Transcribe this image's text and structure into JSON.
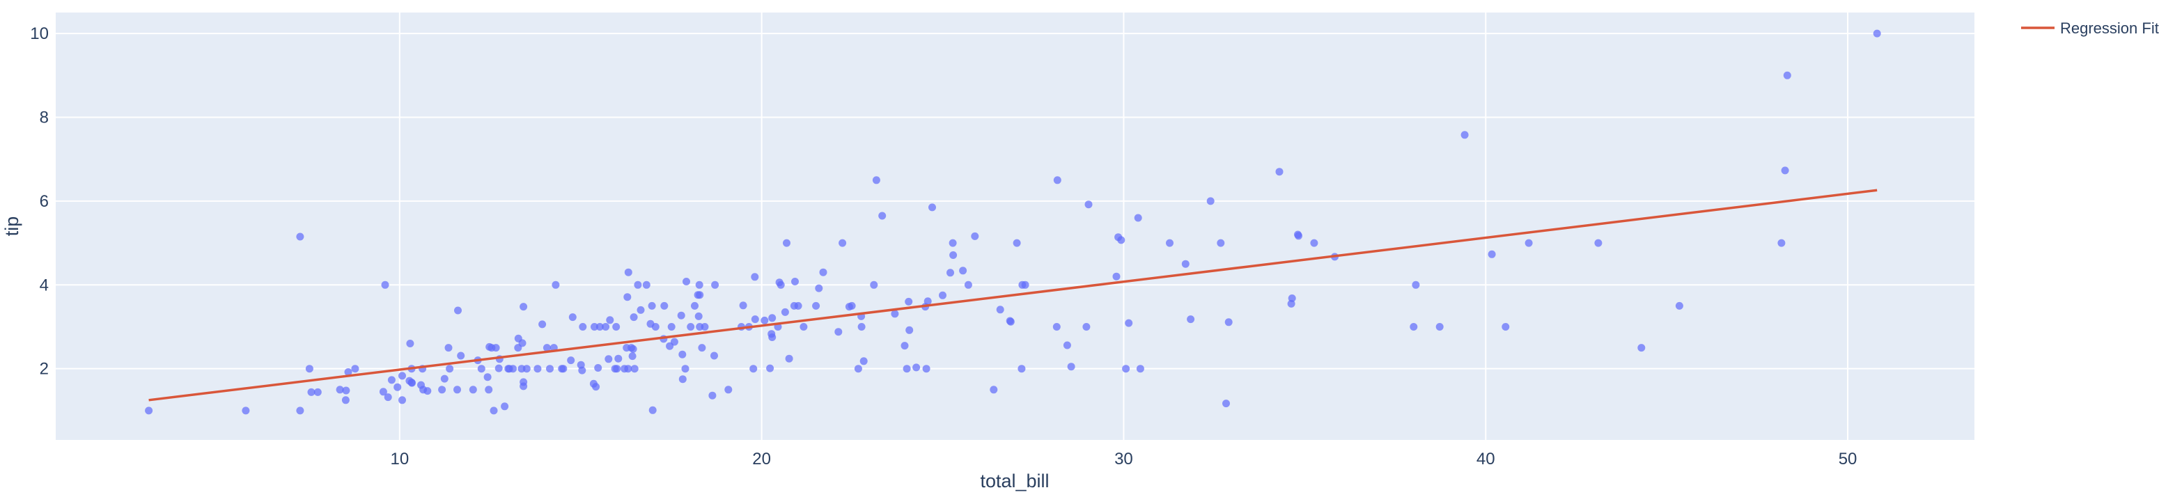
{
  "chart_data": {
    "type": "scatter",
    "title": "",
    "xlabel": "total_bill",
    "ylabel": "tip",
    "xlim": [
      0.5,
      53.5
    ],
    "ylim": [
      0.3,
      10.5
    ],
    "xticks": [
      10,
      20,
      30,
      40,
      50
    ],
    "yticks": [
      2,
      4,
      6,
      8,
      10
    ],
    "grid": true,
    "legend_position": "top-right",
    "colors": {
      "background": "#e5ecf6",
      "grid": "#ffffff",
      "points": "#636efa",
      "fit": "#d9563a",
      "text": "#2a3f5f"
    },
    "series": [
      {
        "type": "scatter",
        "points": [
          [
            3.07,
            1.0
          ],
          [
            5.75,
            1.0
          ],
          [
            7.25,
            5.15
          ],
          [
            7.25,
            1.0
          ],
          [
            7.51,
            2.0
          ],
          [
            7.56,
            1.44
          ],
          [
            7.74,
            1.44
          ],
          [
            8.35,
            1.5
          ],
          [
            8.51,
            1.25
          ],
          [
            8.52,
            1.48
          ],
          [
            8.58,
            1.92
          ],
          [
            8.77,
            2.0
          ],
          [
            9.55,
            1.45
          ],
          [
            9.6,
            4.0
          ],
          [
            9.68,
            1.32
          ],
          [
            9.78,
            1.73
          ],
          [
            9.94,
            1.56
          ],
          [
            10.07,
            1.25
          ],
          [
            10.07,
            1.83
          ],
          [
            10.27,
            1.71
          ],
          [
            10.29,
            2.6
          ],
          [
            10.33,
            1.67
          ],
          [
            10.33,
            2.0
          ],
          [
            10.34,
            1.66
          ],
          [
            10.59,
            1.61
          ],
          [
            10.63,
            2.0
          ],
          [
            10.65,
            1.5
          ],
          [
            10.77,
            1.47
          ],
          [
            11.17,
            1.5
          ],
          [
            11.24,
            1.76
          ],
          [
            11.35,
            2.5
          ],
          [
            11.38,
            2.0
          ],
          [
            11.59,
            1.5
          ],
          [
            11.61,
            3.39
          ],
          [
            11.69,
            2.31
          ],
          [
            12.03,
            1.5
          ],
          [
            12.16,
            2.2
          ],
          [
            12.26,
            2.0
          ],
          [
            12.43,
            1.8
          ],
          [
            12.46,
            1.5
          ],
          [
            12.48,
            2.52
          ],
          [
            12.54,
            2.5
          ],
          [
            12.6,
            1.0
          ],
          [
            12.66,
            2.5
          ],
          [
            12.74,
            2.01
          ],
          [
            12.76,
            2.23
          ],
          [
            12.9,
            1.1
          ],
          [
            13.0,
            2.0
          ],
          [
            13.03,
            2.0
          ],
          [
            13.13,
            2.0
          ],
          [
            13.27,
            2.5
          ],
          [
            13.28,
            2.72
          ],
          [
            13.37,
            2.0
          ],
          [
            13.39,
            2.61
          ],
          [
            13.42,
            1.58
          ],
          [
            13.42,
            3.48
          ],
          [
            13.42,
            1.68
          ],
          [
            13.51,
            2.0
          ],
          [
            13.81,
            2.0
          ],
          [
            13.94,
            3.06
          ],
          [
            14.07,
            2.5
          ],
          [
            14.15,
            2.0
          ],
          [
            14.26,
            2.5
          ],
          [
            14.31,
            4.0
          ],
          [
            14.48,
            2.0
          ],
          [
            14.52,
            2.0
          ],
          [
            14.73,
            2.2
          ],
          [
            14.78,
            3.23
          ],
          [
            15.01,
            2.09
          ],
          [
            15.04,
            1.96
          ],
          [
            15.06,
            3.0
          ],
          [
            15.36,
            1.64
          ],
          [
            15.38,
            3.0
          ],
          [
            15.42,
            1.57
          ],
          [
            15.48,
            2.02
          ],
          [
            15.53,
            3.0
          ],
          [
            15.69,
            3.0
          ],
          [
            15.77,
            2.23
          ],
          [
            15.81,
            3.16
          ],
          [
            15.95,
            2.0
          ],
          [
            15.98,
            3.0
          ],
          [
            16.0,
            2.0
          ],
          [
            16.04,
            2.24
          ],
          [
            16.21,
            2.0
          ],
          [
            16.27,
            2.5
          ],
          [
            16.29,
            3.71
          ],
          [
            16.31,
            2.0
          ],
          [
            16.32,
            4.3
          ],
          [
            16.4,
            2.5
          ],
          [
            16.43,
            2.3
          ],
          [
            16.45,
            2.47
          ],
          [
            16.47,
            3.23
          ],
          [
            16.49,
            2.0
          ],
          [
            16.58,
            4.0
          ],
          [
            16.66,
            3.4
          ],
          [
            16.82,
            4.0
          ],
          [
            16.93,
            3.07
          ],
          [
            16.97,
            3.5
          ],
          [
            16.99,
            1.01
          ],
          [
            17.07,
            3.0
          ],
          [
            17.29,
            2.71
          ],
          [
            17.31,
            3.5
          ],
          [
            17.46,
            2.54
          ],
          [
            17.51,
            3.0
          ],
          [
            17.59,
            2.64
          ],
          [
            17.78,
            3.27
          ],
          [
            17.81,
            2.34
          ],
          [
            17.82,
            1.75
          ],
          [
            17.89,
            2.0
          ],
          [
            17.92,
            4.08
          ],
          [
            18.04,
            3.0
          ],
          [
            18.15,
            3.5
          ],
          [
            18.24,
            3.76
          ],
          [
            18.26,
            3.25
          ],
          [
            18.28,
            4.0
          ],
          [
            18.29,
            3.0
          ],
          [
            18.29,
            3.76
          ],
          [
            18.35,
            2.5
          ],
          [
            18.43,
            3.0
          ],
          [
            18.64,
            1.36
          ],
          [
            18.69,
            2.31
          ],
          [
            18.71,
            4.0
          ],
          [
            19.08,
            1.5
          ],
          [
            19.44,
            3.0
          ],
          [
            19.49,
            3.51
          ],
          [
            19.65,
            3.0
          ],
          [
            19.77,
            2.0
          ],
          [
            19.81,
            4.19
          ],
          [
            19.82,
            3.18
          ],
          [
            20.08,
            3.15
          ],
          [
            20.23,
            2.01
          ],
          [
            20.27,
            2.83
          ],
          [
            20.29,
            3.21
          ],
          [
            20.29,
            2.75
          ],
          [
            20.45,
            3.0
          ],
          [
            20.49,
            4.06
          ],
          [
            20.53,
            4.0
          ],
          [
            20.65,
            3.35
          ],
          [
            20.69,
            5.0
          ],
          [
            20.76,
            2.24
          ],
          [
            20.9,
            3.5
          ],
          [
            20.92,
            4.08
          ],
          [
            21.01,
            3.5
          ],
          [
            21.16,
            3.0
          ],
          [
            21.5,
            3.5
          ],
          [
            21.58,
            3.92
          ],
          [
            21.7,
            4.3
          ],
          [
            22.12,
            2.88
          ],
          [
            22.23,
            5.0
          ],
          [
            22.42,
            3.48
          ],
          [
            22.49,
            3.5
          ],
          [
            22.67,
            2.0
          ],
          [
            22.75,
            3.25
          ],
          [
            22.76,
            3.0
          ],
          [
            22.82,
            2.18
          ],
          [
            23.1,
            4.0
          ],
          [
            23.17,
            6.5
          ],
          [
            23.33,
            5.65
          ],
          [
            23.68,
            3.31
          ],
          [
            23.95,
            2.55
          ],
          [
            24.01,
            2.0
          ],
          [
            24.06,
            3.6
          ],
          [
            24.08,
            2.92
          ],
          [
            24.27,
            2.03
          ],
          [
            24.52,
            3.48
          ],
          [
            24.55,
            2.0
          ],
          [
            24.59,
            3.61
          ],
          [
            24.71,
            5.85
          ],
          [
            25.0,
            3.75
          ],
          [
            25.21,
            4.29
          ],
          [
            25.28,
            5.0
          ],
          [
            25.29,
            4.71
          ],
          [
            25.56,
            4.34
          ],
          [
            25.71,
            4.0
          ],
          [
            25.89,
            5.16
          ],
          [
            26.41,
            1.5
          ],
          [
            26.59,
            3.41
          ],
          [
            26.86,
            3.14
          ],
          [
            26.88,
            3.12
          ],
          [
            27.05,
            5.0
          ],
          [
            27.18,
            2.0
          ],
          [
            27.2,
            4.0
          ],
          [
            27.28,
            4.0
          ],
          [
            28.15,
            3.0
          ],
          [
            28.17,
            6.5
          ],
          [
            28.44,
            2.56
          ],
          [
            28.55,
            2.05
          ],
          [
            28.97,
            3.0
          ],
          [
            29.03,
            5.92
          ],
          [
            29.8,
            4.2
          ],
          [
            29.85,
            5.14
          ],
          [
            29.93,
            5.07
          ],
          [
            30.06,
            2.0
          ],
          [
            30.14,
            3.09
          ],
          [
            30.4,
            5.6
          ],
          [
            30.46,
            2.0
          ],
          [
            31.27,
            5.0
          ],
          [
            31.71,
            4.5
          ],
          [
            31.85,
            3.18
          ],
          [
            32.4,
            6.0
          ],
          [
            32.68,
            5.0
          ],
          [
            32.83,
            1.17
          ],
          [
            32.9,
            3.11
          ],
          [
            34.3,
            6.7
          ],
          [
            34.63,
            3.55
          ],
          [
            34.65,
            3.68
          ],
          [
            34.81,
            5.2
          ],
          [
            34.83,
            5.17
          ],
          [
            35.26,
            5.0
          ],
          [
            35.83,
            4.67
          ],
          [
            38.01,
            3.0
          ],
          [
            38.07,
            4.0
          ],
          [
            38.73,
            3.0
          ],
          [
            39.42,
            7.58
          ],
          [
            40.17,
            4.73
          ],
          [
            40.55,
            3.0
          ],
          [
            41.19,
            5.0
          ],
          [
            43.11,
            5.0
          ],
          [
            44.3,
            2.5
          ],
          [
            45.35,
            3.5
          ],
          [
            48.17,
            5.0
          ],
          [
            48.27,
            6.73
          ],
          [
            48.33,
            9.0
          ],
          [
            50.81,
            10.0
          ]
        ]
      },
      {
        "type": "line",
        "name": "Regression Fit",
        "x": [
          3.07,
          50.81
        ],
        "y": [
          1.25,
          6.26
        ]
      }
    ]
  }
}
